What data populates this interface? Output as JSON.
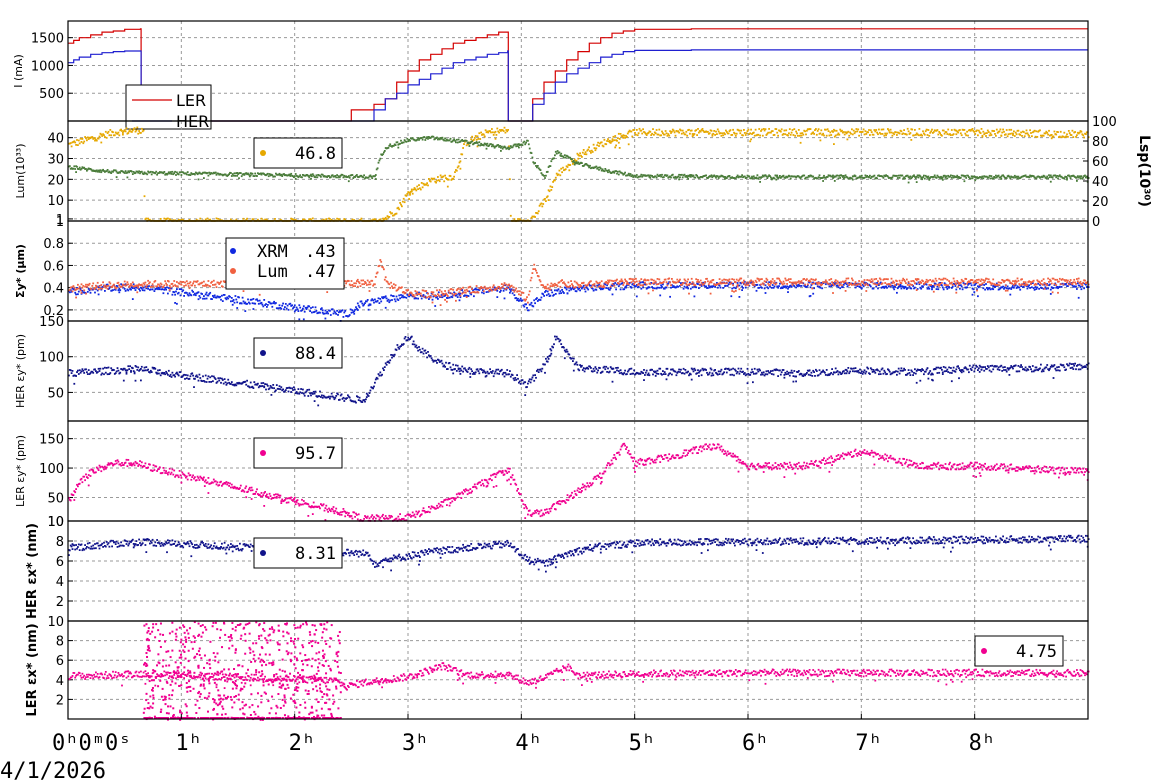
{
  "date_label": "4/1/2026",
  "chart_data": [
    {
      "type": "line",
      "ylabel": "I (mA)",
      "ylim": [
        0,
        1800
      ],
      "yticks": [
        500,
        1000,
        1500
      ],
      "legend_placement": "inside-left",
      "series": [
        {
          "name": "LER",
          "color": "#d40000",
          "x": [
            0,
            0.05,
            0.1,
            0.2,
            0.3,
            0.4,
            0.5,
            0.6,
            0.64,
            0.645,
            0.65,
            2.3,
            2.5,
            2.7,
            2.8,
            2.9,
            3.0,
            3.1,
            3.2,
            3.3,
            3.4,
            3.5,
            3.6,
            3.7,
            3.8,
            3.88,
            3.885,
            3.89,
            4.0,
            4.1,
            4.2,
            4.3,
            4.4,
            4.5,
            4.6,
            4.7,
            4.8,
            4.9,
            5.0,
            5.5,
            6.0,
            7.0,
            8.0,
            9.0
          ],
          "y": [
            1400,
            1450,
            1500,
            1550,
            1600,
            1620,
            1650,
            1650,
            1660,
            0,
            0,
            0,
            200,
            300,
            400,
            700,
            900,
            1100,
            1200,
            1300,
            1400,
            1450,
            1500,
            1550,
            1600,
            1600,
            0,
            0,
            0,
            400,
            700,
            900,
            1100,
            1250,
            1400,
            1500,
            1580,
            1620,
            1650,
            1660,
            1660,
            1660,
            1660,
            1660
          ]
        },
        {
          "name": "HER",
          "color": "#1f1fd0",
          "x": [
            0,
            0.05,
            0.1,
            0.2,
            0.3,
            0.4,
            0.5,
            0.6,
            0.64,
            0.645,
            0.65,
            2.5,
            2.7,
            2.8,
            2.9,
            3.0,
            3.1,
            3.2,
            3.3,
            3.4,
            3.5,
            3.6,
            3.7,
            3.8,
            3.88,
            3.885,
            3.89,
            4.0,
            4.1,
            4.2,
            4.3,
            4.4,
            4.5,
            4.6,
            4.7,
            4.8,
            4.9,
            5.0,
            5.5,
            6.0,
            7.0,
            8.0,
            9.0
          ],
          "y": [
            1050,
            1100,
            1150,
            1200,
            1230,
            1250,
            1260,
            1260,
            1260,
            0,
            0,
            0,
            200,
            400,
            500,
            650,
            750,
            850,
            950,
            1050,
            1100,
            1150,
            1200,
            1230,
            1260,
            0,
            0,
            0,
            300,
            500,
            700,
            850,
            950,
            1050,
            1150,
            1200,
            1250,
            1270,
            1280,
            1280,
            1280,
            1280,
            1280
          ]
        }
      ]
    },
    {
      "type": "scatter",
      "ylabel": "Lum(10³³)",
      "ylim": [
        0,
        48
      ],
      "yticks": [
        1,
        10,
        20,
        30,
        40
      ],
      "y2label": "Lsp(10³⁰)",
      "y2lim": [
        0,
        100
      ],
      "y2ticks": [
        0,
        20,
        40,
        60,
        80,
        100
      ],
      "legend_value": "46.8",
      "series": [
        {
          "name": "",
          "color": "#e6a800",
          "x": [
            0,
            0.2,
            0.4,
            0.6,
            0.66,
            0.67,
            2.6,
            2.75,
            2.9,
            3.0,
            3.2,
            3.4,
            3.5,
            3.7,
            3.88,
            3.9,
            4.0,
            4.1,
            4.2,
            4.3,
            4.5,
            4.8,
            5.0,
            6.0,
            7.0,
            8.0,
            9.0
          ],
          "y": [
            37,
            40,
            43,
            44,
            44,
            0,
            0,
            0,
            6,
            14,
            20,
            22,
            38,
            43,
            44,
            0,
            0,
            2,
            10,
            22,
            32,
            40,
            43,
            43,
            43,
            43,
            42
          ]
        },
        {
          "name": "",
          "color": "#4a7c3a",
          "axis": "y2",
          "x": [
            0,
            0.2,
            0.4,
            0.6,
            0.66,
            2.7,
            2.75,
            2.8,
            3.0,
            3.2,
            3.5,
            3.8,
            3.88,
            4.05,
            4.1,
            4.2,
            4.3,
            4.5,
            4.8,
            5.0,
            6.0,
            7.0,
            8.0,
            9.0
          ],
          "y": [
            55,
            52,
            50,
            49,
            49,
            45,
            65,
            75,
            82,
            84,
            80,
            75,
            74,
            80,
            60,
            45,
            70,
            58,
            50,
            46,
            45,
            45,
            45,
            45
          ]
        }
      ]
    },
    {
      "type": "scatter",
      "ylabel": "Σy* (μm)",
      "ylim": [
        0.1,
        1.0
      ],
      "yticks": [
        0.2,
        0.4,
        0.6,
        0.8,
        1
      ],
      "legend_placement": "inside-left",
      "series": [
        {
          "name": "XRM",
          "legend_value": ".43",
          "color": "#1028e0",
          "x": [
            0,
            0.2,
            0.4,
            0.6,
            0.66,
            2.45,
            2.6,
            2.8,
            3.0,
            3.2,
            3.5,
            3.8,
            3.88,
            4.05,
            4.2,
            4.5,
            5.0,
            6.0,
            7.0,
            8.0,
            9.0
          ],
          "y": [
            0.37,
            0.39,
            0.41,
            0.41,
            0.41,
            0.17,
            0.27,
            0.3,
            0.34,
            0.33,
            0.36,
            0.4,
            0.41,
            0.22,
            0.35,
            0.4,
            0.43,
            0.43,
            0.43,
            0.42,
            0.42
          ]
        },
        {
          "name": "Lum",
          "legend_value": ".47",
          "color": "#f06040",
          "x": [
            0,
            0.2,
            0.4,
            0.6,
            0.66,
            2.7,
            2.75,
            2.8,
            3.0,
            3.2,
            3.5,
            3.8,
            3.88,
            4.05,
            4.1,
            4.2,
            4.3,
            4.5,
            5.0,
            6.0,
            7.0,
            8.0,
            9.0
          ],
          "y": [
            0.4,
            0.42,
            0.43,
            0.44,
            0.44,
            0.45,
            0.68,
            0.45,
            0.36,
            0.35,
            0.38,
            0.42,
            0.43,
            0.3,
            0.6,
            0.4,
            0.45,
            0.43,
            0.46,
            0.46,
            0.46,
            0.46,
            0.46
          ]
        }
      ]
    },
    {
      "type": "scatter",
      "ylabel": "HER εy* (pm)",
      "ylim": [
        10,
        150
      ],
      "yticks": [
        50,
        100,
        150
      ],
      "legend_value": "88.4",
      "series": [
        {
          "name": "",
          "color": "#10138a",
          "x": [
            0,
            0.2,
            0.4,
            0.6,
            0.66,
            2.6,
            2.7,
            2.8,
            2.9,
            3.0,
            3.1,
            3.3,
            3.6,
            3.88,
            4.05,
            4.2,
            4.3,
            4.5,
            5.0,
            5.5,
            6.0,
            6.5,
            7.0,
            7.5,
            8.0,
            8.5,
            9.0
          ],
          "y": [
            78,
            80,
            82,
            84,
            83,
            40,
            65,
            90,
            115,
            130,
            110,
            90,
            80,
            78,
            62,
            90,
            130,
            85,
            80,
            80,
            80,
            78,
            82,
            80,
            85,
            85,
            88
          ]
        }
      ]
    },
    {
      "type": "scatter",
      "ylabel": "LER εy* (pm)",
      "ylim": [
        10,
        180
      ],
      "yticks": [
        10,
        50,
        100,
        150
      ],
      "legend_value": "95.7",
      "series": [
        {
          "name": "",
          "color": "#f00090",
          "x": [
            0,
            0.1,
            0.2,
            0.4,
            0.6,
            0.66,
            2.45,
            2.6,
            3.0,
            3.3,
            3.6,
            3.88,
            4.05,
            4.2,
            4.4,
            4.7,
            4.9,
            5.0,
            5.3,
            5.7,
            6.0,
            6.5,
            7.0,
            7.5,
            8.0,
            8.5,
            9.0
          ],
          "y": [
            45,
            80,
            95,
            110,
            110,
            105,
            25,
            15,
            18,
            40,
            70,
            100,
            25,
            25,
            50,
            90,
            140,
            110,
            120,
            140,
            105,
            105,
            130,
            105,
            105,
            100,
            95
          ]
        }
      ]
    },
    {
      "type": "scatter",
      "ylabel": "HER εx* (nm)",
      "ylim": [
        0,
        10
      ],
      "yticks": [
        2,
        4,
        6,
        8,
        10
      ],
      "legend_value": "8.31",
      "series": [
        {
          "name": "",
          "color": "#10138a",
          "x": [
            0,
            0.2,
            0.4,
            0.6,
            0.66,
            2.65,
            2.7,
            2.8,
            3.0,
            3.2,
            3.5,
            3.88,
            4.05,
            4.2,
            4.4,
            4.6,
            5.0,
            6.0,
            7.0,
            8.0,
            9.0
          ],
          "y": [
            7.4,
            7.6,
            7.8,
            8.0,
            8.0,
            6.8,
            5.8,
            6.2,
            6.6,
            7.0,
            7.4,
            7.8,
            6.2,
            5.8,
            6.8,
            7.4,
            7.9,
            8.0,
            8.1,
            8.2,
            8.3
          ]
        }
      ]
    },
    {
      "type": "scatter",
      "ylabel": "LER εx* (nm)",
      "ylim": [
        0,
        10
      ],
      "yticks": [
        2,
        4,
        6,
        8,
        10
      ],
      "legend_placement": "inside-right",
      "legend_value": "4.75",
      "series": [
        {
          "name": "",
          "color": "#f00090",
          "x": [
            0,
            0.2,
            0.4,
            0.6,
            0.66,
            2.35,
            2.45,
            2.6,
            3.0,
            3.3,
            3.5,
            3.88,
            4.05,
            4.2,
            4.4,
            4.5,
            5.0,
            6.0,
            7.0,
            8.0,
            9.0
          ],
          "y": [
            4.5,
            4.5,
            4.6,
            4.7,
            4.7,
            4.0,
            3.4,
            3.8,
            4.4,
            5.5,
            4.6,
            4.6,
            3.8,
            4.3,
            5.4,
            4.5,
            4.7,
            4.8,
            4.8,
            4.8,
            4.75
          ]
        },
        {
          "name": "",
          "color": "#f00090",
          "style": "sparse-cloud",
          "x_range": [
            0.66,
            2.4
          ],
          "y_range": [
            0,
            10
          ]
        }
      ]
    }
  ],
  "xaxis": {
    "unit": "hours",
    "xlim": [
      0,
      9
    ],
    "ticks": [
      {
        "x": 0,
        "label": "0ʰ0ᵐ0ˢ"
      },
      {
        "x": 1,
        "label": "1ʰ"
      },
      {
        "x": 2,
        "label": "2ʰ"
      },
      {
        "x": 3,
        "label": "3ʰ"
      },
      {
        "x": 4,
        "label": "4ʰ"
      },
      {
        "x": 5,
        "label": "5ʰ"
      },
      {
        "x": 6,
        "label": "6ʰ"
      },
      {
        "x": 7,
        "label": "7ʰ"
      },
      {
        "x": 8,
        "label": "8ʰ"
      }
    ],
    "grid": true
  }
}
